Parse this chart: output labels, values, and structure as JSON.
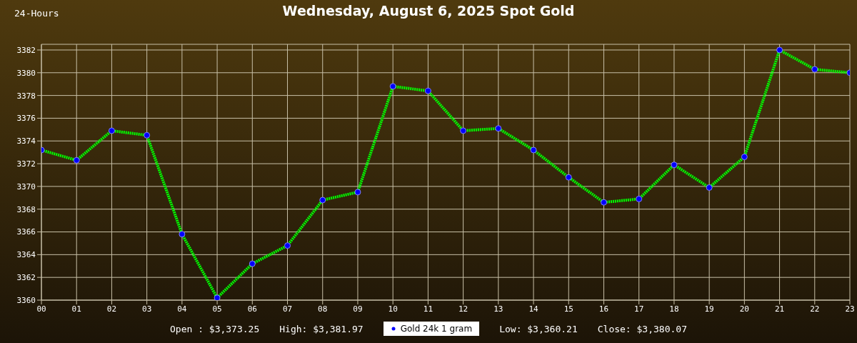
{
  "chart_data": {
    "type": "line",
    "title": "Wednesday, August 6, 2025 Spot Gold",
    "subtitle": "24-Hours",
    "categories": [
      "00",
      "01",
      "02",
      "03",
      "04",
      "05",
      "06",
      "07",
      "08",
      "09",
      "10",
      "11",
      "12",
      "13",
      "14",
      "15",
      "16",
      "17",
      "18",
      "19",
      "20",
      "21",
      "22",
      "23"
    ],
    "series": [
      {
        "name": "Gold 24k 1 gram",
        "color": "#00ff00",
        "values": [
          3373.2,
          3372.3,
          3374.9,
          3374.5,
          3365.8,
          3360.2,
          3363.2,
          3364.8,
          3368.8,
          3369.5,
          3378.8,
          3378.4,
          3374.9,
          3375.1,
          3373.2,
          3370.8,
          3368.6,
          3368.9,
          3371.9,
          3369.9,
          3372.6,
          3382.0,
          3380.3,
          3380.0
        ]
      }
    ],
    "ylim": [
      3360,
      3382.5
    ],
    "yticks": [
      3360,
      3362,
      3364,
      3366,
      3368,
      3370,
      3372,
      3374,
      3376,
      3378,
      3380,
      3382
    ],
    "grid": true,
    "legend": "bottom",
    "marker": "circle",
    "line_style": "dotted",
    "annotations": [
      "Open : $3,373.25",
      "High: $3,381.97",
      "Low: $3,360.21",
      "Close: $3,380.07"
    ]
  }
}
